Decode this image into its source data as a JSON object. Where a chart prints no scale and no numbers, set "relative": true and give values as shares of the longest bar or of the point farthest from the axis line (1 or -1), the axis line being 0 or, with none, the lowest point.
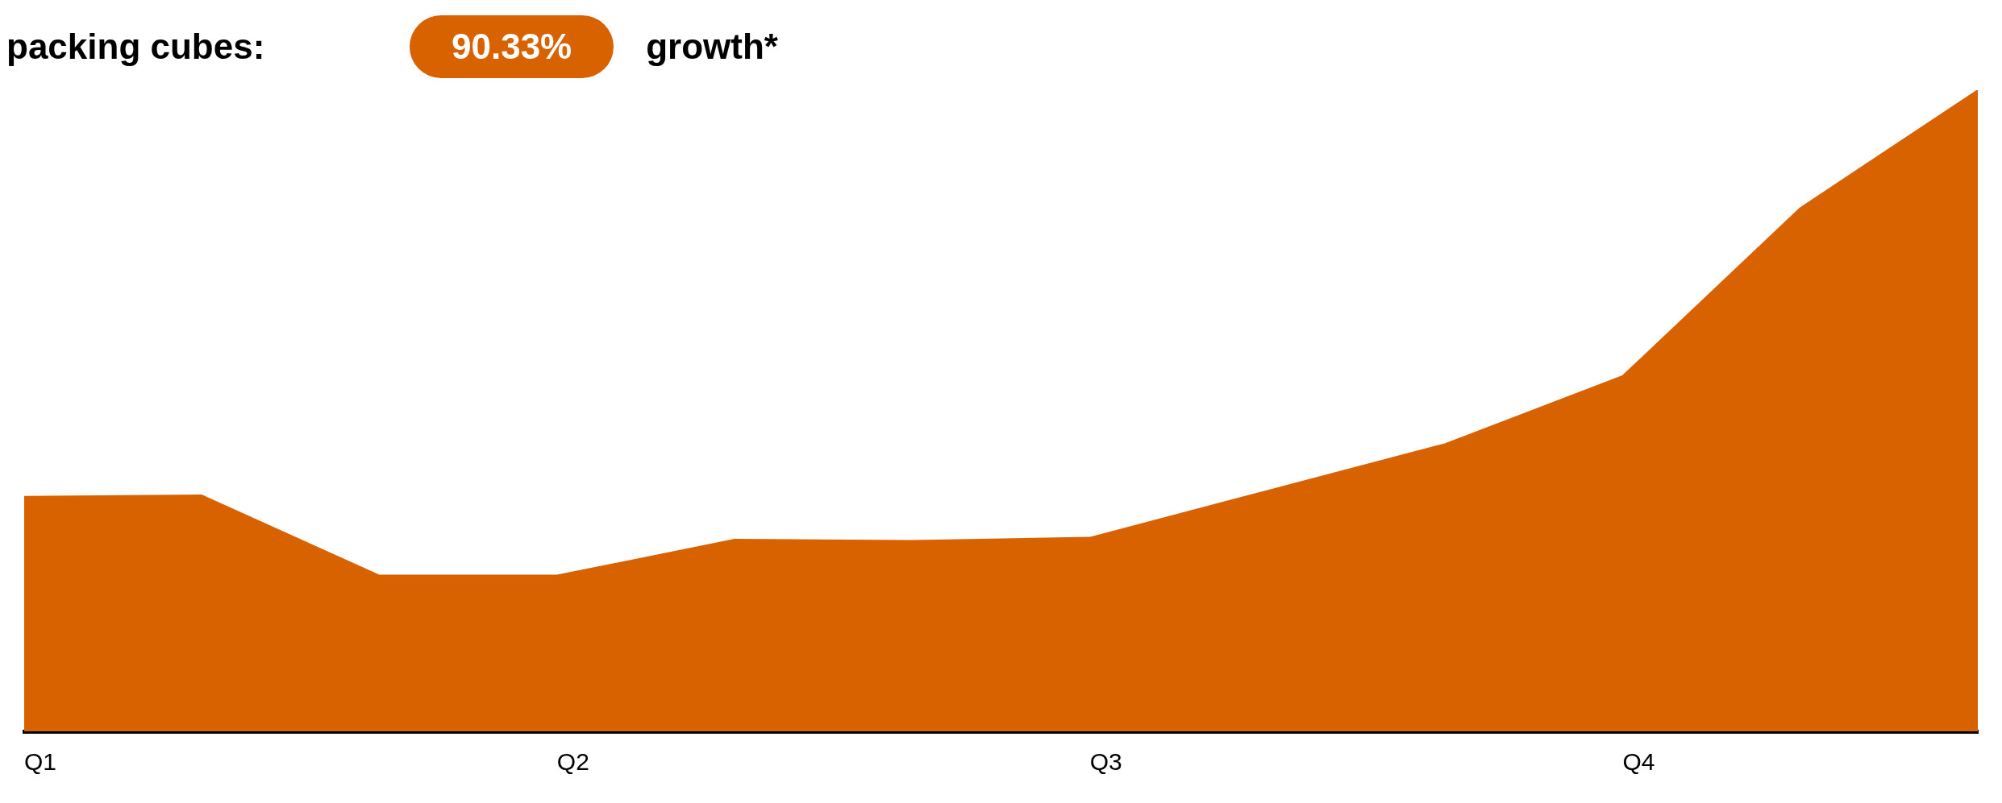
{
  "chart_data": {
    "type": "area",
    "title": "packing cubes:",
    "annotations": [
      "90.33%",
      "growth*"
    ],
    "categories": [
      "Q1",
      null,
      null,
      "Q2",
      null,
      null,
      "Q3",
      null,
      null,
      "Q4",
      null,
      null
    ],
    "values": [
      0.366,
      0.368,
      0.243,
      0.243,
      0.299,
      0.297,
      0.302,
      0.375,
      0.448,
      0.554,
      0.816,
      1
    ],
    "color": "#d96200",
    "relative": true,
    "grid": false,
    "legend": false
  }
}
